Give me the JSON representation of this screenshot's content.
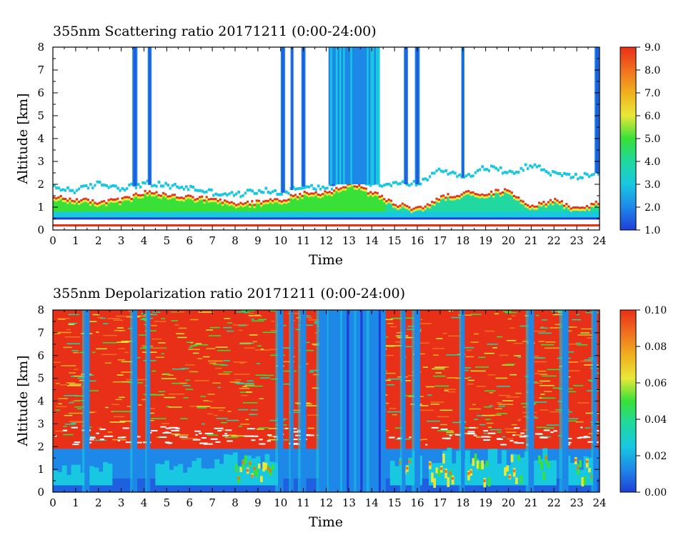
{
  "chart_data": [
    {
      "type": "heatmap",
      "title": "355nm Scattering ratio  20171211 (0:00-24:00)",
      "xlabel": "Time",
      "ylabel": "Altitude [km]",
      "xlim": [
        0,
        24
      ],
      "ylim": [
        0,
        8
      ],
      "xticks": [
        "0",
        "1",
        "2",
        "3",
        "4",
        "5",
        "6",
        "7",
        "8",
        "9",
        "10",
        "11",
        "12",
        "13",
        "14",
        "15",
        "16",
        "17",
        "18",
        "19",
        "20",
        "21",
        "22",
        "23",
        "24"
      ],
      "yticks": [
        "0",
        "1",
        "2",
        "3",
        "4",
        "5",
        "6",
        "7",
        "8"
      ],
      "colorbar": {
        "range": [
          1.0,
          9.0
        ],
        "ticks": [
          "1.0",
          "2.0",
          "3.0",
          "4.0",
          "5.0",
          "6.0",
          "7.0",
          "8.0",
          "9.0"
        ],
        "colors": [
          "#1f3fd8",
          "#1e88e8",
          "#18c8e0",
          "#20d8a0",
          "#38e038",
          "#e8e838",
          "#f0b020",
          "#f07020",
          "#e83018"
        ]
      },
      "cloud_top_km": [
        1.8,
        1.7,
        2.0,
        1.8,
        2.0,
        1.9,
        1.8,
        1.6,
        1.5,
        1.7,
        1.6,
        1.9,
        1.8,
        2.2,
        2.0,
        2.0,
        2.0,
        2.6,
        2.3,
        2.7,
        2.5,
        2.8,
        2.4,
        2.3,
        2.5
      ],
      "cloud_base_km": [
        1.4,
        1.3,
        1.2,
        1.3,
        1.6,
        1.5,
        1.4,
        1.3,
        1.1,
        1.2,
        1.3,
        1.6,
        1.6,
        2.0,
        1.6,
        1.1,
        0.9,
        1.4,
        1.6,
        1.6,
        1.7,
        1.0,
        1.3,
        0.9,
        1.2
      ],
      "high_signal_columns_hour": [
        3.6,
        4.25,
        10.1,
        10.5,
        11.0,
        12.3,
        12.8,
        13.3,
        13.8,
        14.2,
        15.5,
        16.0,
        18.0,
        23.9
      ]
    },
    {
      "type": "heatmap",
      "title": "355nm Depolarization ratio  20171211 (0:00-24:00)",
      "xlabel": "Time",
      "ylabel": "Altitude [km]",
      "xlim": [
        0,
        24
      ],
      "ylim": [
        0,
        8
      ],
      "xticks": [
        "0",
        "1",
        "2",
        "3",
        "4",
        "5",
        "6",
        "7",
        "8",
        "9",
        "10",
        "11",
        "12",
        "13",
        "14",
        "15",
        "16",
        "17",
        "18",
        "19",
        "20",
        "21",
        "22",
        "23",
        "24"
      ],
      "yticks": [
        "0",
        "1",
        "2",
        "3",
        "4",
        "5",
        "6",
        "7",
        "8"
      ],
      "colorbar": {
        "range": [
          0.0,
          0.1
        ],
        "ticks": [
          "0.00",
          "0.02",
          "0.04",
          "0.06",
          "0.08",
          "0.10"
        ],
        "colors": [
          "#1f3fd8",
          "#1e88e8",
          "#18c8e0",
          "#20d8a0",
          "#38e038",
          "#e8e838",
          "#f0b020",
          "#f07020",
          "#e83018"
        ]
      },
      "low_depol_columns_hour": [
        1.5,
        3.6,
        4.2,
        10.0,
        10.5,
        11.0,
        11.8,
        12.2,
        12.8,
        13.4,
        14.0,
        15.4,
        16.0,
        18.0,
        21.0,
        22.5,
        23.8
      ]
    }
  ]
}
